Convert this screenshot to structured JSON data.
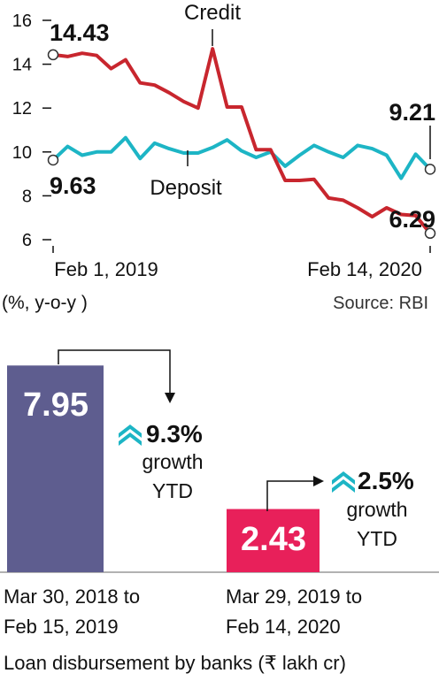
{
  "chart_data": [
    {
      "type": "line",
      "ylim": [
        6,
        16
      ],
      "yticks": [
        6,
        8,
        10,
        12,
        14,
        16
      ],
      "x_start_label": "Feb 1, 2019",
      "x_end_label": "Feb 14, 2020",
      "unit_label": "(%, y-o-y )",
      "source": "Source: RBI",
      "series": [
        {
          "name": "Credit",
          "color": "#c8262e",
          "start_label": "14.43",
          "end_label": "6.29",
          "values": [
            14.43,
            14.35,
            14.5,
            14.4,
            13.8,
            14.2,
            13.15,
            13.05,
            12.7,
            12.3,
            12.0,
            14.7,
            12.05,
            12.05,
            10.1,
            10.1,
            8.7,
            8.7,
            8.75,
            7.9,
            7.8,
            7.45,
            7.05,
            7.45,
            7.15,
            7.1,
            6.29
          ]
        },
        {
          "name": "Deposit",
          "color": "#1db5c5",
          "start_label": "9.63",
          "end_label": "9.21",
          "values": [
            9.63,
            10.25,
            9.85,
            10.0,
            10.0,
            10.65,
            9.7,
            10.4,
            10.15,
            9.95,
            9.95,
            10.2,
            10.55,
            10.05,
            9.75,
            10.0,
            9.35,
            9.85,
            10.3,
            10.0,
            9.75,
            10.3,
            10.15,
            9.85,
            8.8,
            9.9,
            9.21
          ]
        }
      ]
    },
    {
      "type": "bar",
      "title": "Loan disbursement by banks (₹ lakh cr)",
      "categories": [
        "Mar 30, 2018 to Feb 15, 2019",
        "Mar 29, 2019 to Feb 14, 2020"
      ],
      "category_lines": [
        [
          "Mar 30, 2018 to",
          "Feb 15, 2019"
        ],
        [
          "Mar 29, 2019 to",
          "Feb 14, 2020"
        ]
      ],
      "values": [
        7.95,
        2.43
      ],
      "value_labels": [
        "7.95",
        "2.43"
      ],
      "colors": [
        "#5e5d8f",
        "#e8205a"
      ],
      "annotations": [
        {
          "value": "9.3%",
          "line1": "growth",
          "line2": "YTD",
          "icon": "double-chevron-up-icon"
        },
        {
          "value": "2.5%",
          "line1": "growth",
          "line2": "YTD",
          "icon": "double-chevron-up-icon"
        }
      ],
      "accent_color": "#1db5c5"
    }
  ]
}
